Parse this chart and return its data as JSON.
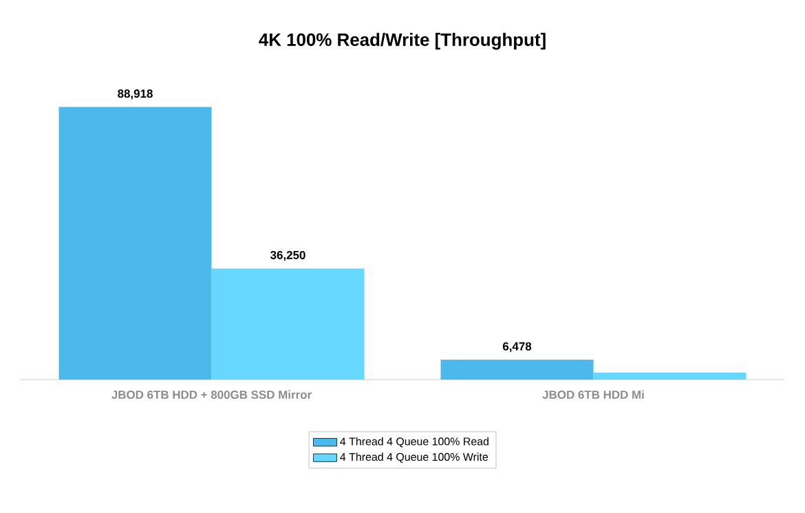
{
  "chart_data": {
    "type": "bar",
    "title": "4K 100% Read/Write [Throughput]",
    "categories": [
      "JBOD 6TB HDD + 800GB SSD Mirror",
      "JBOD 6TB HDD Mi"
    ],
    "series": [
      {
        "name": "4 Thread 4 Queue 100% Read",
        "color": "#4cb9ec",
        "values": [
          88918,
          6478
        ],
        "value_labels": [
          "88,918",
          "6,478"
        ]
      },
      {
        "name": "4 Thread 4 Queue 100% Write",
        "color": "#66d7ff",
        "values": [
          36250,
          2300
        ],
        "value_labels": [
          "36,250",
          null
        ]
      }
    ],
    "tick_labels": "x",
    "legend": "bottom"
  }
}
